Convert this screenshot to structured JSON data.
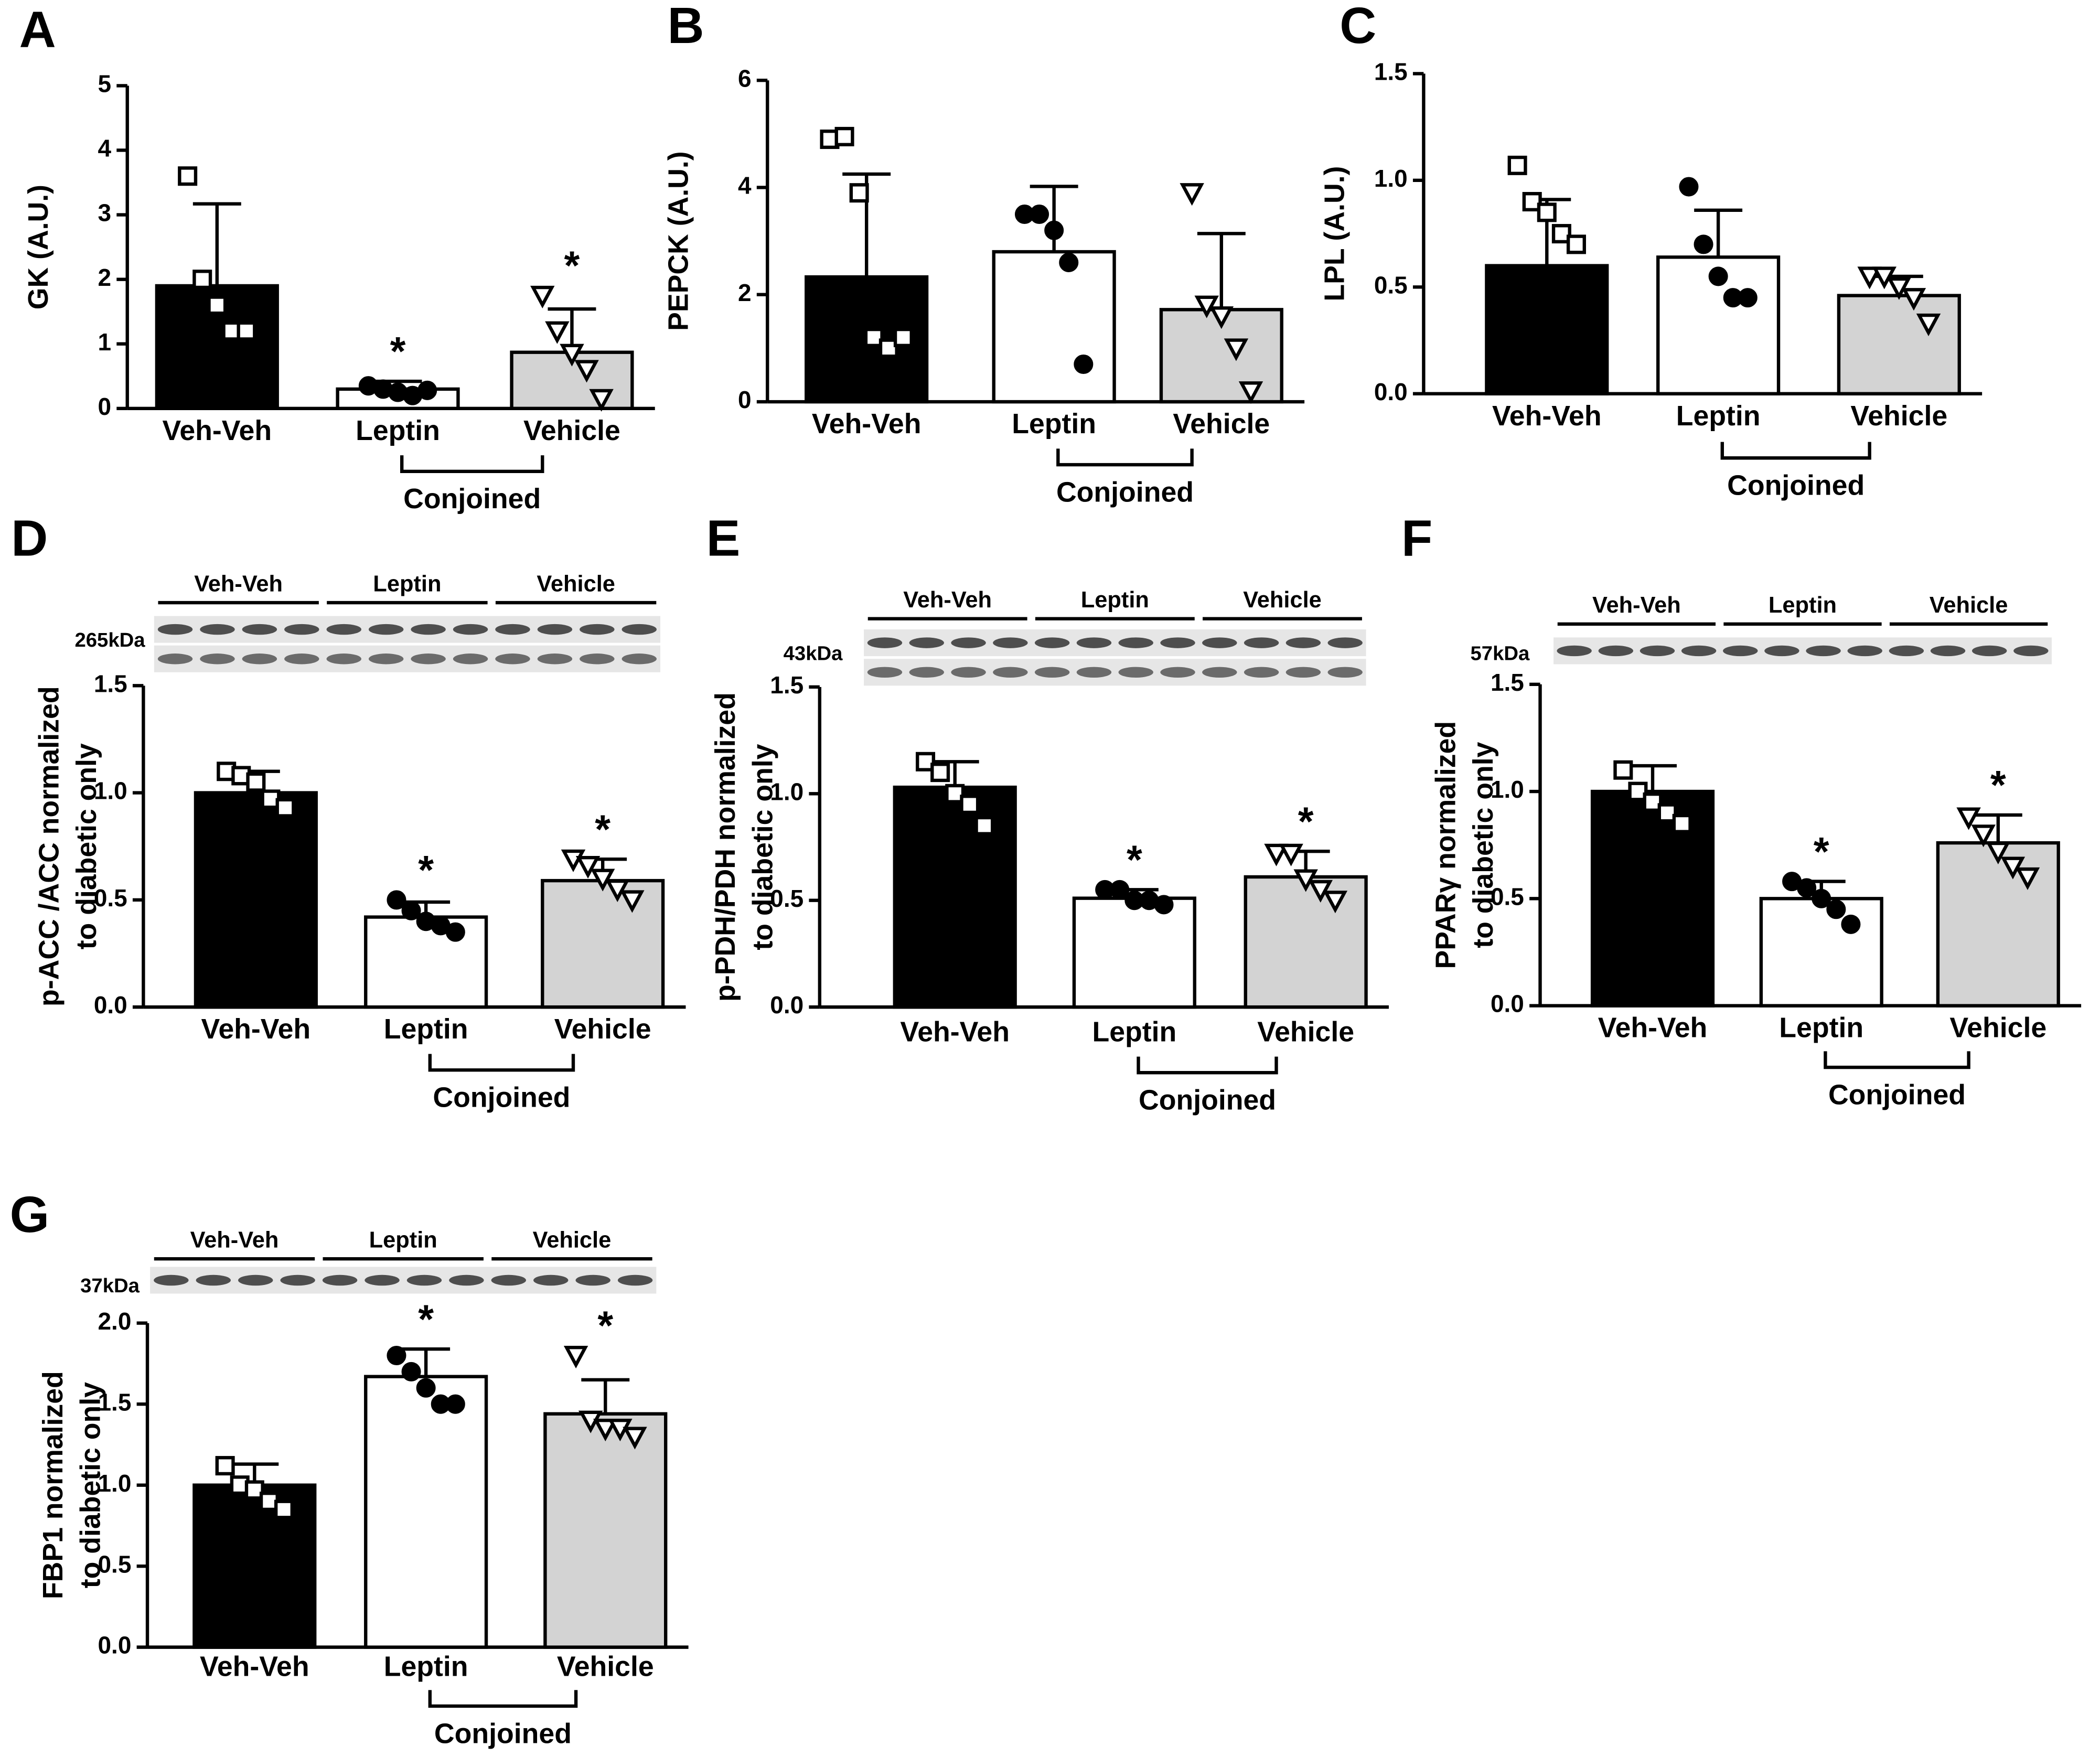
{
  "chart_data": [
    {
      "type": "bar",
      "panel": "A",
      "ylabel": [
        "GK  (A.U.)"
      ],
      "categories": [
        "Veh-Veh",
        "Leptin",
        "Vehicle"
      ],
      "values": [
        1.9,
        0.3,
        0.87
      ],
      "errors": [
        1.27,
        0.12,
        0.67
      ],
      "colors": [
        "#000000",
        "#ffffff",
        "#d3d3d3"
      ],
      "markers": [
        "square",
        "circle",
        "triangle"
      ],
      "points": [
        [
          3.6,
          2.0,
          1.6,
          1.2,
          1.2
        ],
        [
          0.35,
          0.3,
          0.25,
          0.2,
          0.28
        ],
        [
          1.75,
          1.2,
          0.85,
          0.6,
          0.15
        ]
      ],
      "significance": [
        null,
        "*",
        "*"
      ],
      "bracket": "Conjoined",
      "ylim": [
        0,
        5
      ],
      "yticks": [
        0,
        1,
        2,
        3,
        4,
        5
      ]
    },
    {
      "type": "bar",
      "panel": "B",
      "ylabel": [
        "PEPCK (A.U.)"
      ],
      "categories": [
        "Veh-Veh",
        "Leptin",
        "Vehicle"
      ],
      "values": [
        2.33,
        2.8,
        1.72
      ],
      "errors": [
        1.92,
        1.22,
        1.42
      ],
      "colors": [
        "#000000",
        "#ffffff",
        "#d3d3d3"
      ],
      "markers": [
        "square",
        "circle",
        "triangle"
      ],
      "points": [
        [
          4.9,
          4.95,
          3.9,
          1.2,
          1.0,
          1.2
        ],
        [
          3.5,
          3.5,
          3.2,
          2.6,
          0.7
        ],
        [
          3.9,
          1.8,
          1.6,
          1.0,
          0.2
        ]
      ],
      "significance": [
        null,
        null,
        null
      ],
      "bracket": "Conjoined",
      "ylim": [
        0,
        6
      ],
      "yticks": [
        0,
        2,
        4,
        6
      ]
    },
    {
      "type": "bar",
      "panel": "C",
      "ylabel": [
        "LPL (A.U.)"
      ],
      "categories": [
        "Veh-Veh",
        "Leptin",
        "Vehicle"
      ],
      "values": [
        0.6,
        0.64,
        0.46
      ],
      "errors": [
        0.31,
        0.22,
        0.09
      ],
      "colors": [
        "#000000",
        "#ffffff",
        "#d3d3d3"
      ],
      "markers": [
        "square",
        "circle",
        "triangle"
      ],
      "points": [
        [
          1.07,
          0.9,
          0.85,
          0.75,
          0.7
        ],
        [
          0.97,
          0.7,
          0.55,
          0.45,
          0.45
        ],
        [
          0.55,
          0.55,
          0.5,
          0.45,
          0.33
        ]
      ],
      "significance": [
        null,
        null,
        null
      ],
      "bracket": "Conjoined",
      "ylim": [
        0,
        1.5
      ],
      "yticks": [
        {
          "value": 0,
          "label": "0.0"
        },
        {
          "value": 0.5,
          "label": "0.5"
        },
        {
          "value": 1,
          "label": "1.0"
        },
        {
          "value": 1.5,
          "label": "1.5"
        }
      ]
    },
    {
      "type": "bar",
      "panel": "D",
      "ylabel": [
        "p-ACC /ACC normalized",
        "to diabetic only"
      ],
      "categories": [
        "Veh-Veh",
        "Leptin",
        "Vehicle"
      ],
      "values": [
        1.0,
        0.42,
        0.59
      ],
      "errors": [
        0.1,
        0.07,
        0.1
      ],
      "colors": [
        "#000000",
        "#ffffff",
        "#d3d3d3"
      ],
      "markers": [
        "square",
        "circle",
        "triangle"
      ],
      "points": [
        [
          1.1,
          1.08,
          1.05,
          0.97,
          0.93
        ],
        [
          0.5,
          0.45,
          0.4,
          0.38,
          0.35
        ],
        [
          0.69,
          0.66,
          0.6,
          0.55,
          0.5
        ]
      ],
      "significance": [
        null,
        "*",
        "*"
      ],
      "bracket": "Conjoined",
      "blot": {
        "groups": [
          "Veh-Veh",
          "Leptin",
          "Vehicle"
        ],
        "size": "265kDa"
      },
      "ylim": [
        0,
        1.5
      ],
      "yticks": [
        {
          "value": 0,
          "label": "0.0"
        },
        {
          "value": 0.5,
          "label": "0.5"
        },
        {
          "value": 1,
          "label": "1.0"
        },
        {
          "value": 1.5,
          "label": "1.5"
        }
      ]
    },
    {
      "type": "bar",
      "panel": "E",
      "ylabel": [
        "p-PDH/PDH normalized",
        "to diabetic only"
      ],
      "categories": [
        "Veh-Veh",
        "Leptin",
        "Vehicle"
      ],
      "values": [
        1.03,
        0.51,
        0.61
      ],
      "errors": [
        0.12,
        0.04,
        0.12
      ],
      "colors": [
        "#000000",
        "#ffffff",
        "#d3d3d3"
      ],
      "markers": [
        "square",
        "circle",
        "triangle"
      ],
      "points": [
        [
          1.15,
          1.1,
          1.0,
          0.95,
          0.85
        ],
        [
          0.55,
          0.55,
          0.5,
          0.5,
          0.48
        ],
        [
          0.72,
          0.72,
          0.6,
          0.55,
          0.5
        ]
      ],
      "significance": [
        null,
        "*",
        "*"
      ],
      "bracket": "Conjoined",
      "blot": {
        "groups": [
          "Veh-Veh",
          "Leptin",
          "Vehicle"
        ],
        "size": "43kDa"
      },
      "ylim": [
        0,
        1.5
      ],
      "yticks": [
        {
          "value": 0,
          "label": "0.0"
        },
        {
          "value": 0.5,
          "label": "0.5"
        },
        {
          "value": 1,
          "label": "1.0"
        },
        {
          "value": 1.5,
          "label": "1.5"
        }
      ]
    },
    {
      "type": "bar",
      "panel": "F",
      "ylabel": [
        "PPARγ normalized",
        "to diabetic only"
      ],
      "categories": [
        "Veh-Veh",
        "Leptin",
        "Vehicle"
      ],
      "values": [
        1.0,
        0.5,
        0.76
      ],
      "errors": [
        0.12,
        0.08,
        0.13
      ],
      "colors": [
        "#000000",
        "#ffffff",
        "#d3d3d3"
      ],
      "markers": [
        "square",
        "circle",
        "triangle"
      ],
      "points": [
        [
          1.1,
          1.0,
          0.95,
          0.9,
          0.85
        ],
        [
          0.58,
          0.55,
          0.5,
          0.45,
          0.38
        ],
        [
          0.88,
          0.8,
          0.72,
          0.65,
          0.6
        ]
      ],
      "significance": [
        null,
        "*",
        "*"
      ],
      "bracket": "Conjoined",
      "blot": {
        "groups": [
          "Veh-Veh",
          "Leptin",
          "Vehicle"
        ],
        "size": "57kDa"
      },
      "ylim": [
        0,
        1.5
      ],
      "yticks": [
        {
          "value": 0,
          "label": "0.0"
        },
        {
          "value": 0.5,
          "label": "0.5"
        },
        {
          "value": 1,
          "label": "1.0"
        },
        {
          "value": 1.5,
          "label": "1.5"
        }
      ]
    },
    {
      "type": "bar",
      "panel": "G",
      "ylabel": [
        "FBP1 normalized",
        "to diabetic only"
      ],
      "categories": [
        "Veh-Veh",
        "Leptin",
        "Vehicle"
      ],
      "values": [
        1.0,
        1.67,
        1.44
      ],
      "errors": [
        0.13,
        0.17,
        0.21
      ],
      "colors": [
        "#000000",
        "#ffffff",
        "#d3d3d3"
      ],
      "markers": [
        "square",
        "circle",
        "triangle"
      ],
      "points": [
        [
          1.12,
          1.0,
          0.97,
          0.9,
          0.85
        ],
        [
          1.8,
          1.7,
          1.6,
          1.5,
          1.5
        ],
        [
          1.8,
          1.4,
          1.35,
          1.35,
          1.3
        ]
      ],
      "significance": [
        null,
        "*",
        "*"
      ],
      "bracket": "Conjoined",
      "blot": {
        "groups": [
          "Veh-Veh",
          "Leptin",
          "Vehicle"
        ],
        "size": "37kDa"
      },
      "ylim": [
        0,
        2
      ],
      "yticks": [
        {
          "value": 0,
          "label": "0.0"
        },
        {
          "value": 0.5,
          "label": "0.5"
        },
        {
          "value": 1,
          "label": "1.0"
        },
        {
          "value": 1.5,
          "label": "1.5"
        },
        {
          "value": 2,
          "label": "2.0"
        }
      ]
    }
  ]
}
